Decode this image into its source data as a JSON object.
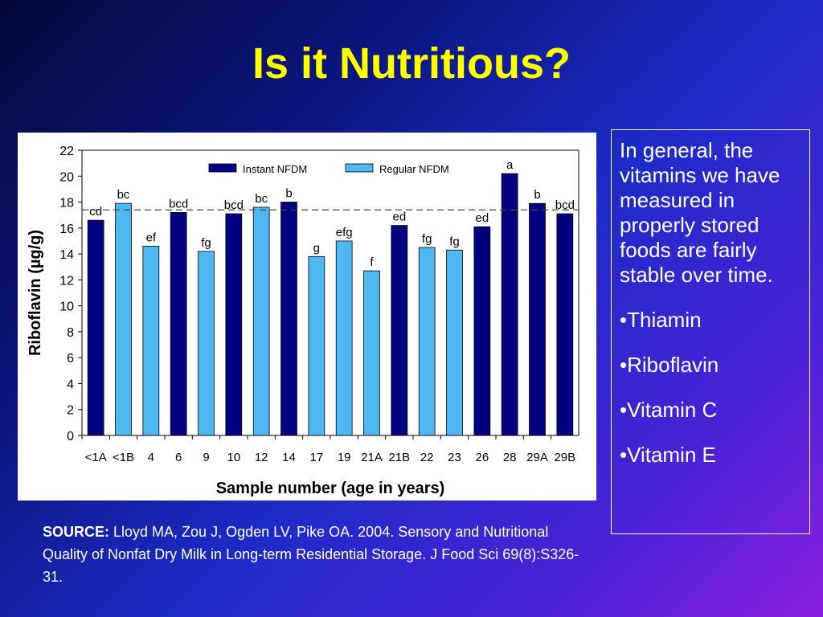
{
  "slide": {
    "title": "Is it Nutritious?",
    "side_text": "In general, the vitamins we have measured in properly stored foods are fairly stable over time.",
    "bullets": [
      "•Thiamin",
      "•Riboflavin",
      "•Vitamin C",
      "•Vitamin E"
    ],
    "source_label": "SOURCE:",
    "source_text": " Lloyd MA, Zou J, Ogden LV, Pike OA. 2004. Sensory and Nutritional Quality of Nonfat Dry Milk in Long-term Residential Storage. J Food Sci 69(8):S326-31."
  },
  "chart_data": {
    "type": "bar",
    "xlabel": "Sample number (age in years)",
    "ylabel": "Riboflavin (µg/g)",
    "ylim": [
      0,
      22
    ],
    "yticks": [
      0,
      2,
      4,
      6,
      8,
      10,
      12,
      14,
      16,
      18,
      20,
      22
    ],
    "reference_line": 17.4,
    "legend": {
      "placement": "top",
      "entries": [
        {
          "name": "Instant NFDM",
          "color": "#000080"
        },
        {
          "name": "Regular NFDM",
          "color": "#4fb8f0"
        }
      ]
    },
    "categories": [
      "<1A",
      "<1B",
      "4",
      "6",
      "9",
      "10",
      "12",
      "14",
      "17",
      "19",
      "21A",
      "21B",
      "22",
      "23",
      "26",
      "28",
      "29A",
      "29B"
    ],
    "values": [
      16.6,
      17.9,
      14.6,
      17.2,
      14.2,
      17.1,
      17.6,
      18.0,
      13.8,
      15.0,
      12.7,
      16.2,
      14.5,
      14.3,
      16.1,
      20.2,
      17.9,
      17.1
    ],
    "types": [
      "Instant NFDM",
      "Regular NFDM",
      "Regular NFDM",
      "Instant NFDM",
      "Regular NFDM",
      "Instant NFDM",
      "Regular NFDM",
      "Instant NFDM",
      "Regular NFDM",
      "Regular NFDM",
      "Regular NFDM",
      "Instant NFDM",
      "Regular NFDM",
      "Regular NFDM",
      "Instant NFDM",
      "Instant NFDM",
      "Instant NFDM",
      "Instant NFDM"
    ],
    "letters": [
      "cd",
      "bc",
      "ef",
      "bcd",
      "fg",
      "bcd",
      "bc",
      "b",
      "g",
      "efg",
      "f",
      "ed",
      "fg",
      "fg",
      "ed",
      "a",
      "b",
      "bcd"
    ]
  }
}
